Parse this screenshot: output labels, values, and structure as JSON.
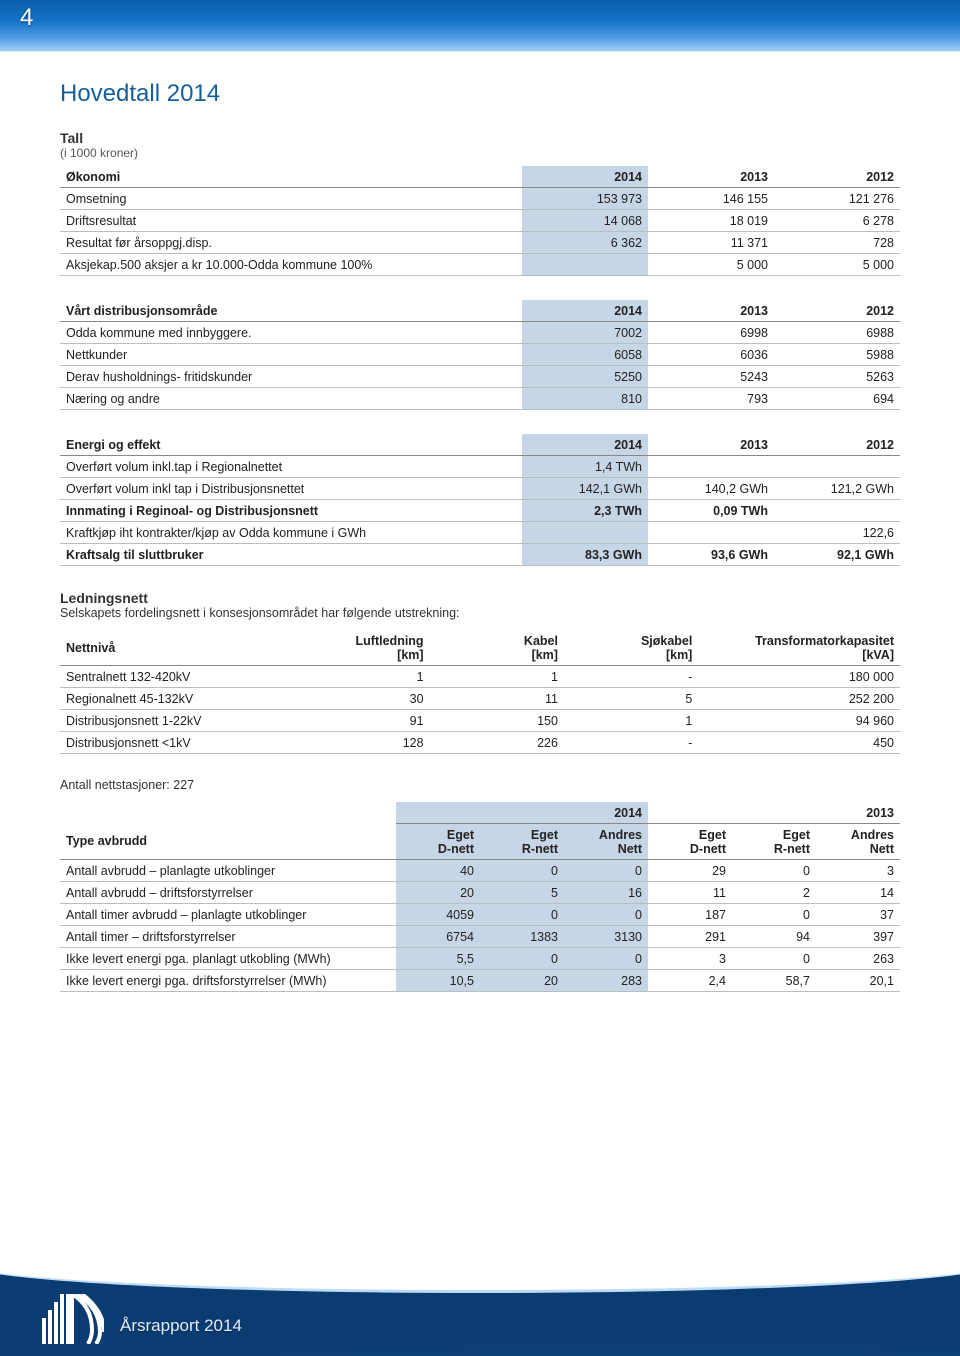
{
  "page_number": "4",
  "page_title": "Hovedtall 2014",
  "footer": "Årsrapport 2014",
  "tall_heading": "Tall",
  "tall_caption": "(i 1000 kroner)",
  "okonomi": {
    "header": [
      "Økonomi",
      "2014",
      "2013",
      "2012"
    ],
    "rows": [
      [
        "Omsetning",
        "153 973",
        "146 155",
        "121 276"
      ],
      [
        "Driftsresultat",
        "14 068",
        "18 019",
        "6 278"
      ],
      [
        "Resultat før årsoppgj.disp.",
        "6 362",
        "11 371",
        "728"
      ],
      [
        "Aksjekap.500 aksjer a kr 10.000-Odda kommune 100%",
        "",
        "5 000",
        "5 000"
      ]
    ]
  },
  "distrib": {
    "header": [
      "Vårt distribusjonsområde",
      "2014",
      "2013",
      "2012"
    ],
    "rows": [
      [
        "Odda kommune med innbyggere.",
        "7002",
        "6998",
        "6988"
      ],
      [
        "Nettkunder",
        "6058",
        "6036",
        "5988"
      ],
      [
        "Derav husholdnings- fritidskunder",
        "5250",
        "5243",
        "5263"
      ],
      [
        "Næring og andre",
        "810",
        "793",
        "694"
      ]
    ]
  },
  "energi": {
    "header": [
      "Energi og effekt",
      "2014",
      "2013",
      "2012"
    ],
    "rows": [
      [
        "Overført volum inkl.tap i Regionalnettet",
        "1,4  TWh",
        "",
        "",
        false
      ],
      [
        "Overført volum inkl tap i Distribusjonsnettet",
        "142,1 GWh",
        "140,2 GWh",
        "121,2 GWh",
        false
      ],
      [
        "Innmating i Reginoal- og Distribusjonsnett",
        "2,3 TWh",
        "0,09 TWh",
        "",
        true
      ],
      [
        "Kraftkjøp iht kontrakter/kjøp av Odda kommune i GWh",
        "",
        "",
        "122,6",
        false
      ],
      [
        "Kraftsalg til sluttbruker",
        "83,3 GWh",
        "93,6 GWh",
        "92,1 GWh",
        true
      ]
    ]
  },
  "ledningsnett_heading": "Ledningsnett",
  "ledningsnett_intro": "Selskapets fordelingsnett i konsesjonsområdet har følgende utstrekning:",
  "nettniva": {
    "columns": [
      "Nettnivå",
      "Luftledning\n[km]",
      "Kabel\n[km]",
      "Sjøkabel\n[km]",
      "Transformatorkapasitet\n[kVA]"
    ],
    "rows": [
      [
        "Sentralnett 132-420kV",
        "1",
        "1",
        "-",
        "180 000"
      ],
      [
        "Regionalnett 45-132kV",
        "30",
        "11",
        "5",
        "252 200"
      ],
      [
        "Distribusjonsnett 1-22kV",
        "91",
        "150",
        "1",
        "94 960"
      ],
      [
        "Distribusjonsnett <1kV",
        "128",
        "226",
        "-",
        "450"
      ]
    ]
  },
  "antall_stasjoner": "Antall nettstasjoner: 227",
  "avbrudd": {
    "year_heads": [
      "2014",
      "2013"
    ],
    "sub_heads": [
      "Type avbrudd",
      "Eget\nD-nett",
      "Eget\nR-nett",
      "Andres\nNett",
      "Eget\nD-nett",
      "Eget\nR-nett",
      "Andres\nNett"
    ],
    "rows": [
      [
        "Antall avbrudd – planlagte utkoblinger",
        "40",
        "0",
        "0",
        "29",
        "0",
        "3"
      ],
      [
        "Antall avbrudd – driftsforstyrrelser",
        "20",
        "5",
        "16",
        "11",
        "2",
        "14"
      ],
      [
        "Antall timer avbrudd – planlagte utkoblinger",
        "4059",
        "0",
        "0",
        "187",
        "0",
        "37"
      ],
      [
        "Antall timer – driftsforstyrrelser",
        "6754",
        "1383",
        "3130",
        "291",
        "94",
        "397"
      ],
      [
        "Ikke levert energi pga. planlagt utkobling (MWh)",
        "5,5",
        "0",
        "0",
        "3",
        "0",
        "263"
      ],
      [
        "Ikke levert energi pga. driftsforstyrrelser (MWh)",
        "10,5",
        "20",
        "283",
        "2,4",
        "58,7",
        "20,1"
      ]
    ]
  }
}
